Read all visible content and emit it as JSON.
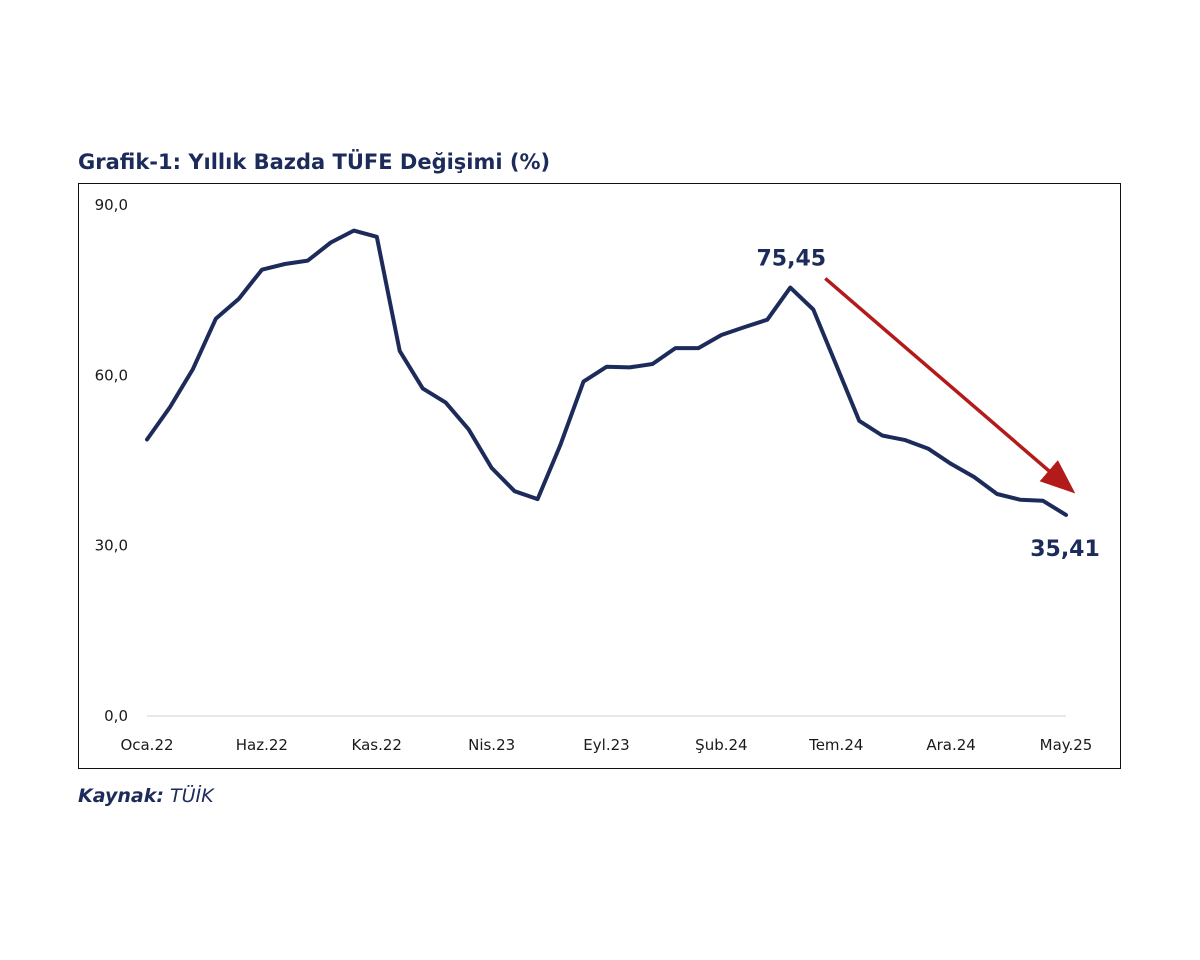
{
  "chart_title": "Grafik-1: Yıllık Bazda TÜFE Değişimi (%)",
  "source": {
    "label": "Kaynak:",
    "value": "TÜİK"
  },
  "colors": {
    "line": "#1c2b5a",
    "arrow": "#b31b1b",
    "axis": "#d9d9d9",
    "text": "#1c2b5a"
  },
  "chart_data": {
    "type": "line",
    "title": "Grafik-1: Yıllık Bazda TÜFE Değişimi (%)",
    "xlabel": "",
    "ylabel": "",
    "ylim": [
      0,
      90
    ],
    "y_ticks": [
      0,
      30,
      60,
      90
    ],
    "y_tick_labels": [
      "0,0",
      "30,0",
      "60,0",
      "90,0"
    ],
    "grid": false,
    "x_tick_labels": [
      "Oca.22",
      "Haz.22",
      "Kas.22",
      "Nis.23",
      "Eyl.23",
      "Şub.24",
      "Tem.24",
      "Ara.24",
      "May.25"
    ],
    "x_tick_every": 5,
    "series": [
      {
        "values": [
          48.7,
          54.4,
          61.1,
          70.0,
          73.5,
          78.6,
          79.6,
          80.2,
          83.4,
          85.5,
          84.4,
          64.3,
          57.7,
          55.2,
          50.5,
          43.7,
          39.6,
          38.2,
          47.8,
          58.9,
          61.5,
          61.4,
          62.0,
          64.8,
          64.8,
          67.1,
          68.5,
          69.8,
          75.45,
          71.6,
          61.8,
          52.0,
          49.4,
          48.6,
          47.1,
          44.4,
          42.1,
          39.1,
          38.1,
          37.9,
          35.41
        ]
      }
    ],
    "annotations": [
      {
        "text": "75,45",
        "point_index": 28
      },
      {
        "text": "35,41",
        "point_index": 40
      }
    ],
    "trend_arrow": {
      "from_index": 29,
      "to_index": 40
    }
  }
}
